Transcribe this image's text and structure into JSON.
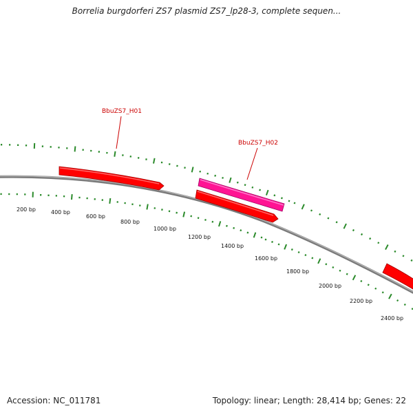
{
  "title": "Borrelia burgdorferi ZS7 plasmid ZS7_lp28-3, complete sequen...",
  "footer": {
    "accession_label": "Accession:",
    "accession": "NC_011781",
    "topology_label": "Topology:",
    "topology": "linear",
    "length_label": "Length:",
    "length": "28,414 bp",
    "genes_label": "Genes:",
    "genes": "22"
  },
  "scale_labels": [
    "200 bp",
    "400 bp",
    "600 bp",
    "800 bp",
    "1000 bp",
    "1200 bp",
    "1400 bp",
    "1600 bp",
    "1800 bp",
    "2000 bp",
    "2200 bp",
    "2400 bp"
  ],
  "genes": [
    {
      "id": "gene-1",
      "strand": "forward",
      "color": "#ff0000",
      "label": ""
    },
    {
      "id": "gene-2",
      "strand": "forward",
      "color": "#ff1493",
      "label": "BbuZS7_H02"
    },
    {
      "id": "gene-3",
      "strand": "forward",
      "color": "#ff0000",
      "label": ""
    },
    {
      "id": "gene-4",
      "strand": "forward",
      "color": "#ff0000",
      "label": ""
    }
  ],
  "gene_labels": [
    "BbuZS7_H01",
    "BbuZS7_H02"
  ],
  "colors": {
    "backbone": "#8a8a8a",
    "tick": "#2a8a2a",
    "gene_red": "#ff0000",
    "gene_pink": "#ff1493",
    "label_red": "#cc0000"
  }
}
